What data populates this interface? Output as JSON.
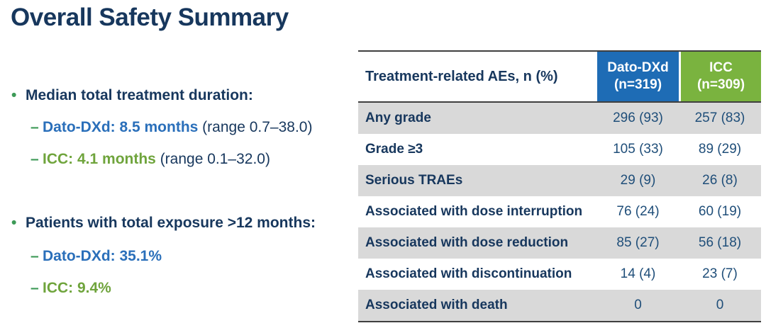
{
  "page": {
    "title": "Overall Safety Summary"
  },
  "glyphs": {
    "bullet": "•",
    "dash": "–"
  },
  "colors": {
    "title_navy": "#17375d",
    "body_navy": "#17375d",
    "dato_blue_text": "#2a6fba",
    "icc_green_text": "#6fa43c",
    "bullet_green": "#3d9a57",
    "header_blue": "#1e6cb5",
    "header_green": "#7ab33f",
    "row_gray": "#d9d9d9",
    "border_dark": "#3f3f3f",
    "value_navy": "#1f4e79"
  },
  "bullets": [
    {
      "label": "Median total treatment duration:",
      "items": [
        {
          "highlight": "Dato-DXd: 8.5 months",
          "suffix": " (range 0.7–38.0)",
          "color": "blue"
        },
        {
          "highlight": "ICC: 4.1 months",
          "suffix": " (range 0.1–32.0)",
          "color": "green"
        }
      ]
    },
    {
      "label": "Patients with total exposure >12 months:",
      "items": [
        {
          "highlight": "Dato-DXd: 35.1%",
          "suffix": "",
          "color": "blue"
        },
        {
          "highlight": "ICC: 9.4%",
          "suffix": "",
          "color": "green"
        }
      ]
    }
  ],
  "table": {
    "corner_label": "Treatment-related AEs, n (%)",
    "columns": [
      {
        "line1": "Dato-DXd",
        "line2": "(n=319)"
      },
      {
        "line1": "ICC",
        "line2": "(n=309)"
      }
    ],
    "rows": [
      {
        "label": "Any grade",
        "dato": "296 (93)",
        "icc": "257 (83)"
      },
      {
        "label": "Grade ≥3",
        "dato": "105 (33)",
        "icc": "89 (29)"
      },
      {
        "label": "Serious TRAEs",
        "dato": "29 (9)",
        "icc": "26 (8)"
      },
      {
        "label": "Associated with dose interruption",
        "dato": "76 (24)",
        "icc": "60 (19)"
      },
      {
        "label": "Associated with dose reduction",
        "dato": "85 (27)",
        "icc": "56 (18)"
      },
      {
        "label": "Associated with discontinuation",
        "dato": "14 (4)",
        "icc": "23 (7)"
      },
      {
        "label": "Associated with death",
        "dato": "0",
        "icc": "0"
      }
    ]
  }
}
